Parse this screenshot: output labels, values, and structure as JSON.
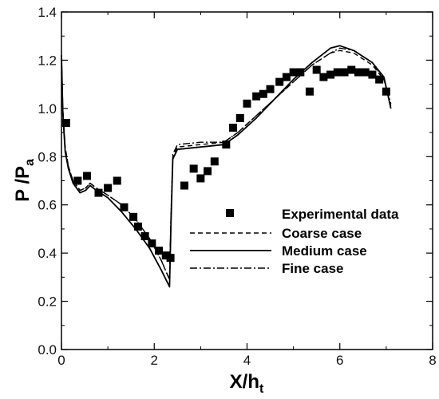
{
  "chart_data": {
    "type": "line",
    "xlabel": {
      "main": "X/h",
      "sub": "t"
    },
    "ylabel": {
      "main": "P /P",
      "sub": "a"
    },
    "xlim": [
      0,
      8
    ],
    "ylim": [
      0,
      1.4
    ],
    "x_ticks": [
      "0",
      "2",
      "4",
      "6",
      "8"
    ],
    "y_ticks": [
      "0.0",
      "0.2",
      "0.4",
      "0.6",
      "0.8",
      "1.0",
      "1.2",
      "1.4"
    ],
    "grid": false,
    "legend_position": "lower-right",
    "legend": [
      {
        "label": "Experimental data",
        "style": "square-marker"
      },
      {
        "label": "Coarse case",
        "style": "dashed"
      },
      {
        "label": "Medium case",
        "style": "solid"
      },
      {
        "label": "Fine case",
        "style": "dash-dot"
      }
    ],
    "series": [
      {
        "name": "Experimental data",
        "style": "square-marker",
        "points": [
          [
            0.1,
            0.94
          ],
          [
            0.35,
            0.7
          ],
          [
            0.55,
            0.72
          ],
          [
            0.8,
            0.65
          ],
          [
            1.0,
            0.67
          ],
          [
            1.2,
            0.7
          ],
          [
            1.35,
            0.59
          ],
          [
            1.55,
            0.55
          ],
          [
            1.65,
            0.51
          ],
          [
            1.8,
            0.47
          ],
          [
            1.95,
            0.44
          ],
          [
            2.1,
            0.41
          ],
          [
            2.25,
            0.39
          ],
          [
            2.35,
            0.38
          ],
          [
            2.65,
            0.68
          ],
          [
            2.85,
            0.75
          ],
          [
            3.0,
            0.71
          ],
          [
            3.15,
            0.74
          ],
          [
            3.3,
            0.78
          ],
          [
            3.55,
            0.85
          ],
          [
            3.7,
            0.92
          ],
          [
            3.85,
            0.96
          ],
          [
            4.0,
            1.02
          ],
          [
            4.2,
            1.05
          ],
          [
            4.35,
            1.06
          ],
          [
            4.5,
            1.08
          ],
          [
            4.7,
            1.11
          ],
          [
            4.85,
            1.13
          ],
          [
            5.0,
            1.15
          ],
          [
            5.15,
            1.15
          ],
          [
            5.35,
            1.07
          ],
          [
            5.5,
            1.16
          ],
          [
            5.65,
            1.13
          ],
          [
            5.8,
            1.14
          ],
          [
            5.95,
            1.15
          ],
          [
            6.1,
            1.15
          ],
          [
            6.25,
            1.16
          ],
          [
            6.4,
            1.15
          ],
          [
            6.55,
            1.15
          ],
          [
            6.7,
            1.14
          ],
          [
            6.85,
            1.12
          ],
          [
            7.0,
            1.07
          ]
        ]
      },
      {
        "name": "Coarse case",
        "style": "dashed",
        "points": [
          [
            0.0,
            1.22
          ],
          [
            0.03,
            1.0
          ],
          [
            0.08,
            0.84
          ],
          [
            0.15,
            0.76
          ],
          [
            0.25,
            0.7
          ],
          [
            0.4,
            0.66
          ],
          [
            0.52,
            0.67
          ],
          [
            0.62,
            0.69
          ],
          [
            0.75,
            0.67
          ],
          [
            1.0,
            0.64
          ],
          [
            1.3,
            0.6
          ],
          [
            1.6,
            0.54
          ],
          [
            1.9,
            0.46
          ],
          [
            2.15,
            0.37
          ],
          [
            2.33,
            0.29
          ],
          [
            2.36,
            0.55
          ],
          [
            2.4,
            0.8
          ],
          [
            2.5,
            0.84
          ],
          [
            3.0,
            0.85
          ],
          [
            3.5,
            0.86
          ],
          [
            3.8,
            0.9
          ],
          [
            4.2,
            0.97
          ],
          [
            4.6,
            1.04
          ],
          [
            5.0,
            1.11
          ],
          [
            5.4,
            1.18
          ],
          [
            5.8,
            1.23
          ],
          [
            6.0,
            1.24
          ],
          [
            6.3,
            1.23
          ],
          [
            6.7,
            1.18
          ],
          [
            6.95,
            1.12
          ],
          [
            7.1,
            1.01
          ]
        ]
      },
      {
        "name": "Medium case",
        "style": "solid",
        "points": [
          [
            0.0,
            1.22
          ],
          [
            0.03,
            0.98
          ],
          [
            0.08,
            0.82
          ],
          [
            0.15,
            0.75
          ],
          [
            0.25,
            0.69
          ],
          [
            0.4,
            0.65
          ],
          [
            0.52,
            0.66
          ],
          [
            0.62,
            0.68
          ],
          [
            0.75,
            0.66
          ],
          [
            1.0,
            0.63
          ],
          [
            1.3,
            0.57
          ],
          [
            1.6,
            0.5
          ],
          [
            1.9,
            0.42
          ],
          [
            2.15,
            0.33
          ],
          [
            2.33,
            0.26
          ],
          [
            2.36,
            0.52
          ],
          [
            2.4,
            0.79
          ],
          [
            2.5,
            0.83
          ],
          [
            3.0,
            0.84
          ],
          [
            3.5,
            0.85
          ],
          [
            3.8,
            0.89
          ],
          [
            4.2,
            0.96
          ],
          [
            4.6,
            1.04
          ],
          [
            5.0,
            1.12
          ],
          [
            5.4,
            1.19
          ],
          [
            5.8,
            1.25
          ],
          [
            6.0,
            1.26
          ],
          [
            6.3,
            1.24
          ],
          [
            6.7,
            1.19
          ],
          [
            6.95,
            1.13
          ],
          [
            7.1,
            1.0
          ]
        ]
      },
      {
        "name": "Fine case",
        "style": "dash-dot",
        "points": [
          [
            0.0,
            1.22
          ],
          [
            0.03,
            0.99
          ],
          [
            0.08,
            0.83
          ],
          [
            0.15,
            0.76
          ],
          [
            0.25,
            0.7
          ],
          [
            0.4,
            0.66
          ],
          [
            0.52,
            0.67
          ],
          [
            0.62,
            0.69
          ],
          [
            0.75,
            0.67
          ],
          [
            1.0,
            0.64
          ],
          [
            1.3,
            0.6
          ],
          [
            1.6,
            0.54
          ],
          [
            1.9,
            0.46
          ],
          [
            2.15,
            0.37
          ],
          [
            2.33,
            0.29
          ],
          [
            2.36,
            0.56
          ],
          [
            2.4,
            0.81
          ],
          [
            2.5,
            0.85
          ],
          [
            3.0,
            0.86
          ],
          [
            3.5,
            0.86
          ],
          [
            3.8,
            0.9
          ],
          [
            4.2,
            0.97
          ],
          [
            4.6,
            1.04
          ],
          [
            5.0,
            1.11
          ],
          [
            5.4,
            1.18
          ],
          [
            5.8,
            1.23
          ],
          [
            6.0,
            1.25
          ],
          [
            6.3,
            1.24
          ],
          [
            6.7,
            1.19
          ],
          [
            6.95,
            1.12
          ],
          [
            7.1,
            1.02
          ]
        ]
      }
    ]
  }
}
